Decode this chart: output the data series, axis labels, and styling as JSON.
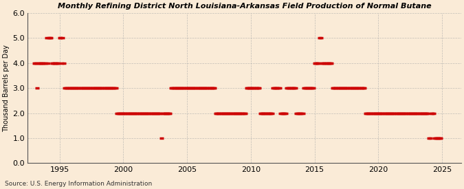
{
  "title": "Monthly Refining District North Louisiana-Arkansas Field Production of Normal Butane",
  "ylabel": "Thousand Barrels per Day",
  "source": "Source: U.S. Energy Information Administration",
  "bg_color": "#faebd7",
  "line_color": "#cc0000",
  "marker_color": "#cc0000",
  "grid_color": "#aaaaaa",
  "ylim": [
    0.0,
    6.0
  ],
  "yticks": [
    0.0,
    1.0,
    2.0,
    3.0,
    4.0,
    5.0,
    6.0
  ],
  "xlim_start": 1992.5,
  "xlim_end": 2026.5,
  "xticks": [
    1995,
    2000,
    2005,
    2010,
    2015,
    2020,
    2025
  ],
  "data": [
    [
      1993.0,
      4
    ],
    [
      1993.083,
      4
    ],
    [
      1993.167,
      4
    ],
    [
      1993.25,
      3
    ],
    [
      1993.333,
      4
    ],
    [
      1993.417,
      4
    ],
    [
      1993.5,
      4
    ],
    [
      1993.583,
      4
    ],
    [
      1993.667,
      4
    ],
    [
      1993.75,
      4
    ],
    [
      1993.833,
      4
    ],
    [
      1993.917,
      4
    ],
    [
      1994.0,
      5
    ],
    [
      1994.083,
      4
    ],
    [
      1994.167,
      5
    ],
    [
      1994.25,
      5
    ],
    [
      1994.333,
      5
    ],
    [
      1994.417,
      4
    ],
    [
      1994.5,
      4
    ],
    [
      1994.583,
      4
    ],
    [
      1994.667,
      4
    ],
    [
      1994.75,
      4
    ],
    [
      1994.833,
      4
    ],
    [
      1994.917,
      4
    ],
    [
      1995.0,
      5
    ],
    [
      1995.083,
      5
    ],
    [
      1995.167,
      4
    ],
    [
      1995.25,
      5
    ],
    [
      1995.333,
      4
    ],
    [
      1995.417,
      3
    ],
    [
      1995.5,
      3
    ],
    [
      1995.583,
      3
    ],
    [
      1995.667,
      3
    ],
    [
      1995.75,
      3
    ],
    [
      1995.833,
      3
    ],
    [
      1995.917,
      3
    ],
    [
      1996.0,
      3
    ],
    [
      1996.083,
      3
    ],
    [
      1996.167,
      3
    ],
    [
      1996.25,
      3
    ],
    [
      1996.333,
      3
    ],
    [
      1996.417,
      3
    ],
    [
      1996.5,
      3
    ],
    [
      1996.583,
      3
    ],
    [
      1996.667,
      3
    ],
    [
      1996.75,
      3
    ],
    [
      1996.833,
      3
    ],
    [
      1996.917,
      3
    ],
    [
      1997.0,
      3
    ],
    [
      1997.083,
      3
    ],
    [
      1997.167,
      3
    ],
    [
      1997.25,
      3
    ],
    [
      1997.333,
      3
    ],
    [
      1997.417,
      3
    ],
    [
      1997.5,
      3
    ],
    [
      1997.583,
      3
    ],
    [
      1997.667,
      3
    ],
    [
      1997.75,
      3
    ],
    [
      1997.833,
      3
    ],
    [
      1997.917,
      3
    ],
    [
      1998.0,
      3
    ],
    [
      1998.083,
      3
    ],
    [
      1998.167,
      3
    ],
    [
      1998.25,
      3
    ],
    [
      1998.333,
      3
    ],
    [
      1998.417,
      3
    ],
    [
      1998.5,
      3
    ],
    [
      1998.583,
      3
    ],
    [
      1998.667,
      3
    ],
    [
      1998.75,
      3
    ],
    [
      1998.833,
      3
    ],
    [
      1998.917,
      3
    ],
    [
      1999.0,
      3
    ],
    [
      1999.083,
      3
    ],
    [
      1999.167,
      3
    ],
    [
      1999.25,
      3
    ],
    [
      1999.333,
      3
    ],
    [
      1999.417,
      3
    ],
    [
      1999.5,
      2
    ],
    [
      1999.583,
      2
    ],
    [
      1999.667,
      2
    ],
    [
      1999.75,
      2
    ],
    [
      1999.833,
      2
    ],
    [
      1999.917,
      2
    ],
    [
      2000.0,
      2
    ],
    [
      2000.083,
      2
    ],
    [
      2000.167,
      2
    ],
    [
      2000.25,
      2
    ],
    [
      2000.333,
      2
    ],
    [
      2000.417,
      2
    ],
    [
      2000.5,
      2
    ],
    [
      2000.583,
      2
    ],
    [
      2000.667,
      2
    ],
    [
      2000.75,
      2
    ],
    [
      2000.833,
      2
    ],
    [
      2000.917,
      2
    ],
    [
      2001.0,
      2
    ],
    [
      2001.083,
      2
    ],
    [
      2001.167,
      2
    ],
    [
      2001.25,
      2
    ],
    [
      2001.333,
      2
    ],
    [
      2001.417,
      2
    ],
    [
      2001.5,
      2
    ],
    [
      2001.583,
      2
    ],
    [
      2001.667,
      2
    ],
    [
      2001.75,
      2
    ],
    [
      2001.833,
      2
    ],
    [
      2001.917,
      2
    ],
    [
      2002.0,
      2
    ],
    [
      2002.083,
      2
    ],
    [
      2002.167,
      2
    ],
    [
      2002.25,
      2
    ],
    [
      2002.333,
      2
    ],
    [
      2002.417,
      2
    ],
    [
      2002.5,
      2
    ],
    [
      2002.583,
      2
    ],
    [
      2002.667,
      2
    ],
    [
      2002.75,
      2
    ],
    [
      2002.833,
      2
    ],
    [
      2002.917,
      2
    ],
    [
      2003.0,
      1
    ],
    [
      2003.083,
      2
    ],
    [
      2003.167,
      2
    ],
    [
      2003.25,
      2
    ],
    [
      2003.333,
      2
    ],
    [
      2003.417,
      2
    ],
    [
      2003.5,
      2
    ],
    [
      2003.583,
      2
    ],
    [
      2003.667,
      2
    ],
    [
      2003.75,
      3
    ],
    [
      2003.833,
      3
    ],
    [
      2003.917,
      3
    ],
    [
      2004.0,
      3
    ],
    [
      2004.083,
      3
    ],
    [
      2004.167,
      3
    ],
    [
      2004.25,
      3
    ],
    [
      2004.333,
      3
    ],
    [
      2004.417,
      3
    ],
    [
      2004.5,
      3
    ],
    [
      2004.583,
      3
    ],
    [
      2004.667,
      3
    ],
    [
      2004.75,
      3
    ],
    [
      2004.833,
      3
    ],
    [
      2004.917,
      3
    ],
    [
      2005.0,
      3
    ],
    [
      2005.083,
      3
    ],
    [
      2005.167,
      3
    ],
    [
      2005.25,
      3
    ],
    [
      2005.333,
      3
    ],
    [
      2005.417,
      3
    ],
    [
      2005.5,
      3
    ],
    [
      2005.583,
      3
    ],
    [
      2005.667,
      3
    ],
    [
      2005.75,
      3
    ],
    [
      2005.833,
      3
    ],
    [
      2005.917,
      3
    ],
    [
      2006.0,
      3
    ],
    [
      2006.083,
      3
    ],
    [
      2006.167,
      3
    ],
    [
      2006.25,
      3
    ],
    [
      2006.333,
      3
    ],
    [
      2006.417,
      3
    ],
    [
      2006.5,
      3
    ],
    [
      2006.583,
      3
    ],
    [
      2006.667,
      3
    ],
    [
      2006.75,
      3
    ],
    [
      2006.833,
      3
    ],
    [
      2006.917,
      3
    ],
    [
      2007.0,
      3
    ],
    [
      2007.083,
      3
    ],
    [
      2007.167,
      3
    ],
    [
      2007.25,
      2
    ],
    [
      2007.333,
      2
    ],
    [
      2007.417,
      2
    ],
    [
      2007.5,
      2
    ],
    [
      2007.583,
      2
    ],
    [
      2007.667,
      2
    ],
    [
      2007.75,
      2
    ],
    [
      2007.833,
      2
    ],
    [
      2007.917,
      2
    ],
    [
      2008.0,
      2
    ],
    [
      2008.083,
      2
    ],
    [
      2008.167,
      2
    ],
    [
      2008.25,
      2
    ],
    [
      2008.333,
      2
    ],
    [
      2008.417,
      2
    ],
    [
      2008.5,
      2
    ],
    [
      2008.583,
      2
    ],
    [
      2008.667,
      2
    ],
    [
      2008.75,
      2
    ],
    [
      2008.833,
      2
    ],
    [
      2008.917,
      2
    ],
    [
      2009.0,
      2
    ],
    [
      2009.083,
      2
    ],
    [
      2009.167,
      2
    ],
    [
      2009.25,
      2
    ],
    [
      2009.333,
      2
    ],
    [
      2009.417,
      2
    ],
    [
      2009.5,
      2
    ],
    [
      2009.583,
      2
    ],
    [
      2009.667,
      3
    ],
    [
      2009.75,
      3
    ],
    [
      2009.833,
      3
    ],
    [
      2009.917,
      3
    ],
    [
      2010.0,
      3
    ],
    [
      2010.083,
      3
    ],
    [
      2010.167,
      3
    ],
    [
      2010.25,
      3
    ],
    [
      2010.333,
      3
    ],
    [
      2010.417,
      3
    ],
    [
      2010.5,
      3
    ],
    [
      2010.583,
      3
    ],
    [
      2010.667,
      3
    ],
    [
      2010.75,
      2
    ],
    [
      2010.833,
      2
    ],
    [
      2010.917,
      2
    ],
    [
      2011.0,
      2
    ],
    [
      2011.083,
      2
    ],
    [
      2011.167,
      2
    ],
    [
      2011.25,
      2
    ],
    [
      2011.333,
      2
    ],
    [
      2011.417,
      2
    ],
    [
      2011.5,
      2
    ],
    [
      2011.583,
      2
    ],
    [
      2011.667,
      2
    ],
    [
      2011.75,
      3
    ],
    [
      2011.833,
      3
    ],
    [
      2011.917,
      3
    ],
    [
      2012.0,
      3
    ],
    [
      2012.083,
      3
    ],
    [
      2012.167,
      3
    ],
    [
      2012.25,
      3
    ],
    [
      2012.333,
      2
    ],
    [
      2012.417,
      2
    ],
    [
      2012.5,
      2
    ],
    [
      2012.583,
      2
    ],
    [
      2012.667,
      2
    ],
    [
      2012.75,
      2
    ],
    [
      2012.833,
      3
    ],
    [
      2012.917,
      3
    ],
    [
      2013.0,
      3
    ],
    [
      2013.083,
      3
    ],
    [
      2013.167,
      3
    ],
    [
      2013.25,
      3
    ],
    [
      2013.333,
      3
    ],
    [
      2013.417,
      3
    ],
    [
      2013.5,
      3
    ],
    [
      2013.583,
      2
    ],
    [
      2013.667,
      2
    ],
    [
      2013.75,
      2
    ],
    [
      2013.833,
      2
    ],
    [
      2013.917,
      2
    ],
    [
      2014.0,
      2
    ],
    [
      2014.083,
      2
    ],
    [
      2014.167,
      3
    ],
    [
      2014.25,
      3
    ],
    [
      2014.333,
      3
    ],
    [
      2014.417,
      3
    ],
    [
      2014.5,
      3
    ],
    [
      2014.583,
      3
    ],
    [
      2014.667,
      3
    ],
    [
      2014.75,
      3
    ],
    [
      2014.833,
      3
    ],
    [
      2014.917,
      3
    ],
    [
      2015.0,
      4
    ],
    [
      2015.083,
      4
    ],
    [
      2015.167,
      4
    ],
    [
      2015.25,
      4
    ],
    [
      2015.333,
      4
    ],
    [
      2015.417,
      5
    ],
    [
      2015.5,
      5
    ],
    [
      2015.583,
      4
    ],
    [
      2015.667,
      4
    ],
    [
      2015.75,
      4
    ],
    [
      2015.833,
      4
    ],
    [
      2015.917,
      4
    ],
    [
      2016.0,
      4
    ],
    [
      2016.083,
      4
    ],
    [
      2016.167,
      4
    ],
    [
      2016.25,
      4
    ],
    [
      2016.333,
      4
    ],
    [
      2016.417,
      3
    ],
    [
      2016.5,
      3
    ],
    [
      2016.583,
      3
    ],
    [
      2016.667,
      3
    ],
    [
      2016.75,
      3
    ],
    [
      2016.833,
      3
    ],
    [
      2016.917,
      3
    ],
    [
      2017.0,
      3
    ],
    [
      2017.083,
      3
    ],
    [
      2017.167,
      3
    ],
    [
      2017.25,
      3
    ],
    [
      2017.333,
      3
    ],
    [
      2017.417,
      3
    ],
    [
      2017.5,
      3
    ],
    [
      2017.583,
      3
    ],
    [
      2017.667,
      3
    ],
    [
      2017.75,
      3
    ],
    [
      2017.833,
      3
    ],
    [
      2017.917,
      3
    ],
    [
      2018.0,
      3
    ],
    [
      2018.083,
      3
    ],
    [
      2018.167,
      3
    ],
    [
      2018.25,
      3
    ],
    [
      2018.333,
      3
    ],
    [
      2018.417,
      3
    ],
    [
      2018.5,
      3
    ],
    [
      2018.583,
      3
    ],
    [
      2018.667,
      3
    ],
    [
      2018.75,
      3
    ],
    [
      2018.833,
      3
    ],
    [
      2018.917,
      3
    ],
    [
      2019.0,
      2
    ],
    [
      2019.083,
      2
    ],
    [
      2019.167,
      2
    ],
    [
      2019.25,
      2
    ],
    [
      2019.333,
      2
    ],
    [
      2019.417,
      2
    ],
    [
      2019.5,
      2
    ],
    [
      2019.583,
      2
    ],
    [
      2019.667,
      2
    ],
    [
      2019.75,
      2
    ],
    [
      2019.833,
      2
    ],
    [
      2019.917,
      2
    ],
    [
      2020.0,
      2
    ],
    [
      2020.083,
      2
    ],
    [
      2020.167,
      2
    ],
    [
      2020.25,
      2
    ],
    [
      2020.333,
      2
    ],
    [
      2020.417,
      2
    ],
    [
      2020.5,
      2
    ],
    [
      2020.583,
      2
    ],
    [
      2020.667,
      2
    ],
    [
      2020.75,
      2
    ],
    [
      2020.833,
      2
    ],
    [
      2020.917,
      2
    ],
    [
      2021.0,
      2
    ],
    [
      2021.083,
      2
    ],
    [
      2021.167,
      2
    ],
    [
      2021.25,
      2
    ],
    [
      2021.333,
      2
    ],
    [
      2021.417,
      2
    ],
    [
      2021.5,
      2
    ],
    [
      2021.583,
      2
    ],
    [
      2021.667,
      2
    ],
    [
      2021.75,
      2
    ],
    [
      2021.833,
      2
    ],
    [
      2021.917,
      2
    ],
    [
      2022.0,
      2
    ],
    [
      2022.083,
      2
    ],
    [
      2022.167,
      2
    ],
    [
      2022.25,
      2
    ],
    [
      2022.333,
      2
    ],
    [
      2022.417,
      2
    ],
    [
      2022.5,
      2
    ],
    [
      2022.583,
      2
    ],
    [
      2022.667,
      2
    ],
    [
      2022.75,
      2
    ],
    [
      2022.833,
      2
    ],
    [
      2022.917,
      2
    ],
    [
      2023.0,
      2
    ],
    [
      2023.083,
      2
    ],
    [
      2023.167,
      2
    ],
    [
      2023.25,
      2
    ],
    [
      2023.333,
      2
    ],
    [
      2023.417,
      2
    ],
    [
      2023.5,
      2
    ],
    [
      2023.583,
      2
    ],
    [
      2023.667,
      2
    ],
    [
      2023.75,
      2
    ],
    [
      2023.833,
      2
    ],
    [
      2023.917,
      2
    ],
    [
      2024.0,
      1
    ],
    [
      2024.083,
      1
    ],
    [
      2024.167,
      2
    ],
    [
      2024.25,
      2
    ],
    [
      2024.333,
      2
    ],
    [
      2024.417,
      1
    ],
    [
      2024.5,
      1
    ],
    [
      2024.583,
      1
    ],
    [
      2024.667,
      1
    ],
    [
      2024.75,
      1
    ],
    [
      2024.833,
      1
    ],
    [
      2024.917,
      1
    ]
  ]
}
